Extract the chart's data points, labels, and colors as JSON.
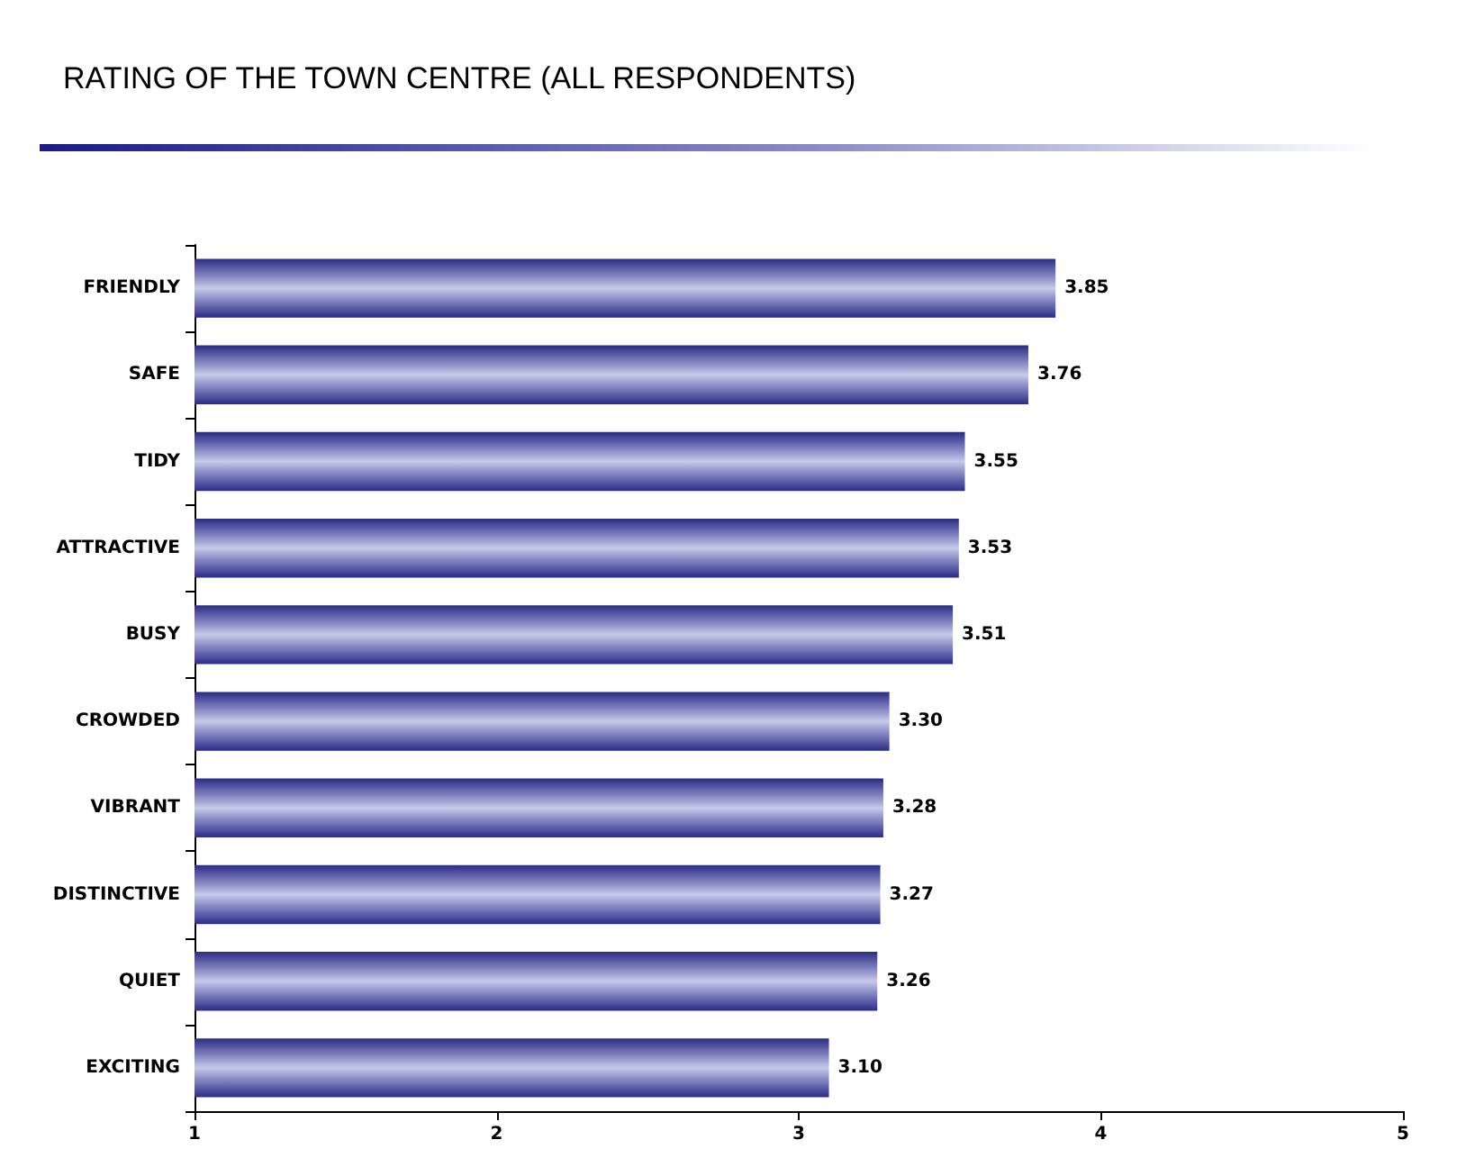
{
  "chart_data": {
    "type": "bar",
    "orientation": "horizontal",
    "title": "RATING OF THE TOWN CENTRE (ALL RESPONDENTS)",
    "categories": [
      "FRIENDLY",
      "SAFE",
      "TIDY",
      "ATTRACTIVE",
      "BUSY",
      "CROWDED",
      "VIBRANT",
      "DISTINCTIVE",
      "QUIET",
      "EXCITING"
    ],
    "values": [
      3.85,
      3.76,
      3.55,
      3.53,
      3.51,
      3.3,
      3.28,
      3.27,
      3.26,
      3.1
    ],
    "color": "#9598cc",
    "value_labels": [
      "3.85",
      "3.76",
      "3.55",
      "3.53",
      "3.51",
      "3.30",
      "3.28",
      "3.27",
      "3.26",
      "3.10"
    ],
    "xlim": [
      1,
      5
    ],
    "xticks": [
      1,
      2,
      3,
      4,
      5
    ],
    "grid": false
  }
}
